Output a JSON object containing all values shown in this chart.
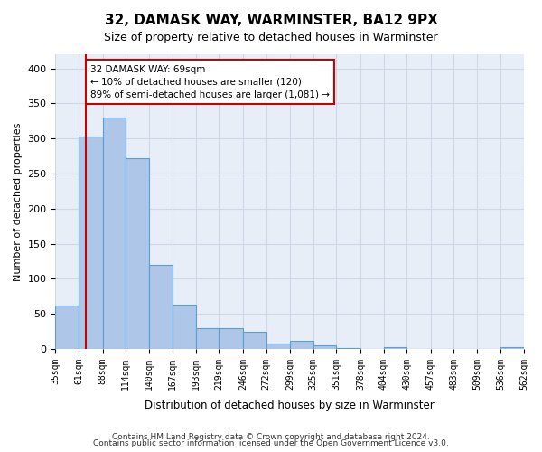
{
  "title": "32, DAMASK WAY, WARMINSTER, BA12 9PX",
  "subtitle": "Size of property relative to detached houses in Warminster",
  "xlabel": "Distribution of detached houses by size in Warminster",
  "ylabel": "Number of detached properties",
  "bar_edges": [
    35,
    61,
    88,
    114,
    140,
    167,
    193,
    219,
    246,
    272,
    299,
    325,
    351,
    378,
    404,
    430,
    457,
    483,
    509,
    536,
    562
  ],
  "bar_heights": [
    62,
    303,
    330,
    272,
    120,
    63,
    29,
    29,
    25,
    8,
    11,
    5,
    1,
    0,
    3,
    0,
    0,
    0,
    0,
    2
  ],
  "bar_color": "#aec6e8",
  "bar_edge_color": "#5a9fd4",
  "property_size": 69,
  "red_line_color": "#cc0000",
  "annotation_line1": "32 DAMASK WAY: 69sqm",
  "annotation_line2": "← 10% of detached houses are smaller (120)",
  "annotation_line3": "89% of semi-detached houses are larger (1,081) →",
  "annotation_box_color": "white",
  "annotation_box_edge_color": "#cc0000",
  "ylim": [
    0,
    420
  ],
  "yticks": [
    0,
    50,
    100,
    150,
    200,
    250,
    300,
    350,
    400
  ],
  "grid_color": "#d0d8e8",
  "background_color": "#e8eef8",
  "footer_line1": "Contains HM Land Registry data © Crown copyright and database right 2024.",
  "footer_line2": "Contains public sector information licensed under the Open Government Licence v3.0."
}
